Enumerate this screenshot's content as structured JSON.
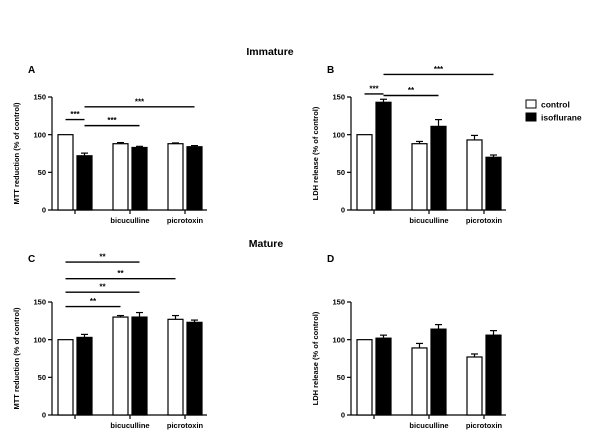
{
  "sections": [
    {
      "title": "Immature"
    },
    {
      "title": "Mature"
    }
  ],
  "legend": {
    "entries": [
      {
        "label": "control",
        "color": "#ffffff"
      },
      {
        "label": "isoflurane",
        "color": "#000000"
      }
    ]
  },
  "chart_data": [
    {
      "panel": "A",
      "type": "bar",
      "ylabel": "MTT reduction (% of control)",
      "ylim": [
        0,
        150
      ],
      "yticks": [
        "0",
        "50",
        "100",
        "150"
      ],
      "categories": [
        "",
        "bicuculline",
        "picrotoxin"
      ],
      "series": [
        {
          "name": "control",
          "values": [
            100,
            88,
            88
          ],
          "errors": [
            0,
            1.5,
            1
          ]
        },
        {
          "name": "isoflurane",
          "values": [
            72,
            83,
            84
          ],
          "errors": [
            3.5,
            1.5,
            1.5
          ]
        }
      ],
      "significance": [
        {
          "label": "***",
          "from": [
            0,
            0
          ],
          "to": [
            0,
            1
          ],
          "level": 120
        },
        {
          "label": "***",
          "from": [
            0,
            1
          ],
          "to": [
            2,
            1
          ],
          "level": 137
        },
        {
          "label": "***",
          "from": [
            0,
            1
          ],
          "to": [
            1,
            1
          ],
          "level": 112
        }
      ]
    },
    {
      "panel": "B",
      "type": "bar",
      "ylabel": "LDH release (% of control)",
      "ylim": [
        0,
        150
      ],
      "yticks": [
        "0",
        "50",
        "100",
        "150"
      ],
      "categories": [
        "",
        "bicuculline",
        "picrotoxin"
      ],
      "series": [
        {
          "name": "control",
          "values": [
            100,
            88,
            93
          ],
          "errors": [
            0,
            3,
            6
          ]
        },
        {
          "name": "isoflurane",
          "values": [
            143,
            111,
            70
          ],
          "errors": [
            4,
            9,
            3
          ]
        }
      ],
      "significance": [
        {
          "label": "***",
          "from": [
            0,
            0
          ],
          "to": [
            0,
            1
          ],
          "level": 154
        },
        {
          "label": "***",
          "from": [
            0,
            1
          ],
          "to": [
            2,
            1
          ],
          "level": 180
        },
        {
          "label": "**",
          "from": [
            0,
            1
          ],
          "to": [
            1,
            1
          ],
          "level": 152
        }
      ]
    },
    {
      "panel": "C",
      "type": "bar",
      "ylabel": "MTT reduction (% of control)",
      "ylim": [
        0,
        150
      ],
      "yticks": [
        "0",
        "50",
        "100",
        "150"
      ],
      "categories": [
        "",
        "bicuculline",
        "picrotoxin"
      ],
      "series": [
        {
          "name": "control",
          "values": [
            100,
            130,
            127
          ],
          "errors": [
            0,
            2,
            5
          ]
        },
        {
          "name": "isoflurane",
          "values": [
            103,
            130,
            123
          ],
          "errors": [
            4,
            6,
            3
          ]
        }
      ],
      "significance": [
        {
          "label": "**",
          "from": [
            0,
            0
          ],
          "to": [
            1,
            1
          ],
          "level": 203
        },
        {
          "label": "**",
          "from": [
            0,
            0
          ],
          "to": [
            2,
            0
          ],
          "level": 181
        },
        {
          "label": "**",
          "from": [
            0,
            0
          ],
          "to": [
            1,
            1
          ],
          "level": 163
        },
        {
          "label": "**",
          "from": [
            0,
            0
          ],
          "to": [
            1,
            0
          ],
          "level": 144
        }
      ]
    },
    {
      "panel": "D",
      "type": "bar",
      "ylabel": "LDH release (% of control)",
      "ylim": [
        0,
        150
      ],
      "yticks": [
        "0",
        "50",
        "100",
        "150"
      ],
      "categories": [
        "",
        "bicuculline",
        "picrotoxin"
      ],
      "series": [
        {
          "name": "control",
          "values": [
            100,
            89,
            77
          ],
          "errors": [
            0,
            6,
            4
          ]
        },
        {
          "name": "isoflurane",
          "values": [
            102,
            114,
            106
          ],
          "errors": [
            4,
            6,
            6
          ]
        }
      ],
      "significance": []
    }
  ]
}
